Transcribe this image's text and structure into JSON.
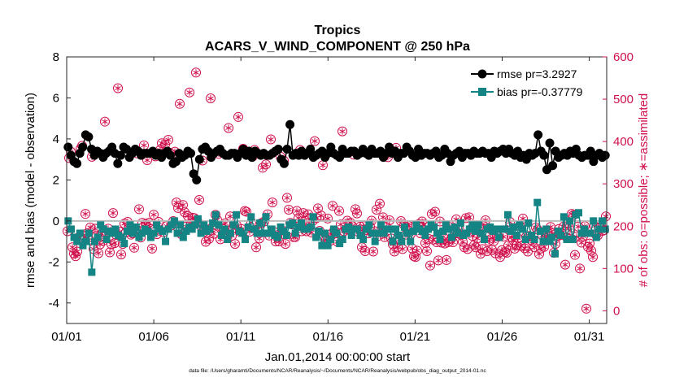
{
  "chart_data": {
    "type": "line",
    "title": "Tropics",
    "subtitle": "ACARS_V_WIND_COMPONENT @ 250 hPa",
    "xlabel": "Jan.01,2014 00:00:00 start",
    "ylabel": "rmse and bias (model - observation)",
    "ylabel_right": "# of obs: o=possible; ∗=assimilated",
    "footnote": "data file: /Users/gharamti/Documents/NCAR/Reanalysis/~/Documents/NCAR/Reanalysis/webpub/obs_diag_output_2014-01.nc",
    "xlim": [
      1,
      32
    ],
    "ylim": [
      -5,
      8
    ],
    "ylim_right": [
      -30,
      600
    ],
    "x_ticks": [
      1,
      6,
      11,
      16,
      21,
      26,
      31
    ],
    "x_tick_labels": [
      "01/01",
      "01/06",
      "01/11",
      "01/16",
      "01/21",
      "01/26",
      "01/31"
    ],
    "y_ticks": [
      -4,
      -2,
      0,
      2,
      4,
      6,
      8
    ],
    "y_ticks_right": [
      0,
      100,
      200,
      300,
      400,
      500,
      600
    ],
    "zero_line": 0,
    "legend_position": "top-right",
    "colors": {
      "rmse": "#000000",
      "bias": "#148484",
      "obs": "#d0104c",
      "zero": "#bbbbbb"
    },
    "series": [
      {
        "name": "rmse",
        "legend": "rmse pr=3.2927",
        "values": [
          3.6,
          3.2,
          2.9,
          2.8,
          3.3,
          3.6,
          4.2,
          4.1,
          3.5,
          3.2,
          3.4,
          3.3,
          3.1,
          3.3,
          3.4,
          3.6,
          3.3,
          2.8,
          3.2,
          3.6,
          3.5,
          3.1,
          3.3,
          3.5,
          3.4,
          3.2,
          3.3,
          3.3,
          3.3,
          3.4,
          3.2,
          3.3,
          3.1,
          3.3,
          3.4,
          3.2,
          2.8,
          2.9,
          3.3,
          3.1,
          3.2,
          3.4,
          3.3,
          2.3,
          2.0,
          3.0,
          3.5,
          3.6,
          3.4,
          3.1,
          3.3,
          3.4,
          3.5,
          3.3,
          3.2,
          3.2,
          3.3,
          3.3,
          3.1,
          3.3,
          3.5,
          3.2,
          3.4,
          3.1,
          3.4,
          3.3,
          3.2,
          3.3,
          3.2,
          3.2,
          3.3,
          3.4,
          3.5,
          3.0,
          2.8,
          3.5,
          4.7,
          3.2,
          3.3,
          3.2,
          3.4,
          3.2,
          3.3,
          3.5,
          3.1,
          3.2,
          3.3,
          3.4,
          3.1,
          3.3,
          3.6,
          3.3,
          3.2,
          3.1,
          3.5,
          3.3,
          3.3,
          3.4,
          3.4,
          3.2,
          3.3,
          3.5,
          3.3,
          3.2,
          3.5,
          3.3,
          3.3,
          3.4,
          3.1,
          3.3,
          3.6,
          3.3,
          3.4,
          3.1,
          3.3,
          3.3,
          3.6,
          3.4,
          3.2,
          3.1,
          3.5,
          3.2,
          3.3,
          3.3,
          3.2,
          3.3,
          3.4,
          3.1,
          3.2,
          3.5,
          3.3,
          2.9,
          3.2,
          3.3,
          3.4,
          3.1,
          3.3,
          3.3,
          3.2,
          3.4,
          3.3,
          3.3,
          3.4,
          3.3,
          3.3,
          3.1,
          3.4,
          3.3,
          3.4,
          3.5,
          3.3,
          3.5,
          3.3,
          3.2,
          3.4,
          3.1,
          3.2,
          3.0,
          3.3,
          3.2,
          3.3,
          4.2,
          3.4,
          3.2,
          2.5,
          3.8,
          2.7,
          3.4,
          3.1,
          3.2,
          3.3,
          3.2,
          3.4,
          3.3,
          3.5,
          3.2,
          3.1,
          3.2,
          3.2,
          3.4,
          2.9,
          3.2,
          3.3,
          3.1,
          3.2
        ]
      },
      {
        "name": "bias",
        "legend": "bias pr=-0.37779",
        "values": [
          0.0,
          -0.4,
          -0.8,
          -1.0,
          -0.6,
          -1.2,
          -1.0,
          -0.6,
          -2.5,
          -1.0,
          -0.8,
          -0.2,
          -0.4,
          -0.9,
          -0.5,
          -0.6,
          -0.4,
          -0.7,
          -0.8,
          -1.1,
          -0.5,
          -0.2,
          -0.6,
          -0.3,
          -0.8,
          -0.6,
          -0.4,
          -0.5,
          -0.8,
          -0.6,
          -0.2,
          -0.4,
          -0.5,
          -1.0,
          -0.4,
          -0.2,
          0.0,
          -0.6,
          -0.2,
          -0.8,
          -0.5,
          -0.3,
          -0.4,
          -0.2,
          0.1,
          -0.6,
          -0.2,
          -0.5,
          -0.4,
          -0.1,
          0.3,
          -0.2,
          -0.7,
          -0.4,
          -0.9,
          -0.6,
          -0.2,
          0.3,
          -0.5,
          -0.6,
          -0.9,
          -0.3,
          0.2,
          -0.4,
          -0.6,
          -0.1,
          -0.6,
          0.2,
          -0.6,
          -0.4,
          -0.7,
          -0.8,
          -0.3,
          -0.5,
          -0.7,
          -0.2,
          -0.1,
          -0.6,
          -0.3,
          -0.1,
          -0.4,
          -0.4,
          -0.3,
          0.2,
          -0.8,
          -0.5,
          -1.2,
          -0.6,
          -1.2,
          -0.9,
          -0.4,
          -0.6,
          -1.1,
          -0.9,
          -0.4,
          -0.3,
          -0.7,
          -0.4,
          -0.4,
          -0.7,
          -0.9,
          -0.4,
          -0.2,
          -0.6,
          -1.0,
          -0.6,
          -0.2,
          -0.6,
          -0.4,
          -0.4,
          -1.0,
          -0.4,
          -0.7,
          -1.0,
          -0.3,
          -0.6,
          -1.0,
          -0.5,
          -0.2,
          -0.4,
          -0.5,
          -0.7,
          -0.4,
          -0.2,
          -0.3,
          -0.6,
          -0.9,
          -0.5,
          -0.2,
          -0.4,
          -0.8,
          -0.3,
          -0.6,
          -0.1,
          -0.7,
          -0.6,
          -0.4,
          -0.2,
          -0.5,
          -0.2,
          -0.6,
          -0.9,
          -0.4,
          -0.3,
          -0.5,
          -0.4,
          -0.8,
          -0.4,
          -0.4,
          0.3,
          -0.5,
          -0.3,
          -0.7,
          -0.2,
          -0.4,
          -0.9,
          -0.1,
          -0.7,
          -0.9,
          0.9,
          -0.5,
          -1.0,
          -0.4,
          -1.0,
          -0.8,
          -1.6,
          -0.5,
          -0.7,
          0.2,
          -0.9,
          0.0,
          -0.9,
          0.3,
          0.4,
          -0.6,
          -0.4,
          -0.6,
          -0.6,
          0.0,
          -0.8,
          -0.4,
          0.0,
          -0.4
        ]
      },
      {
        "name": "obs_possible",
        "axis": "right",
        "values": [
          188,
          361,
          376,
          150,
          135,
          129,
          140,
          174,
          383,
          390,
          178,
          229,
          183,
          167,
          197,
          364,
          146,
          194,
          178,
          136,
          157,
          182,
          166,
          447,
          182,
          194,
          138,
          157,
          231,
          160,
          179,
          526,
          187,
          133,
          158,
          206,
          186,
          210,
          196,
          180,
          183,
          149,
          193,
          372,
          240,
          173,
          208,
          391,
          205,
          356,
          208,
          193,
          147,
          227,
          365,
          181,
          210,
          380,
          396,
          186,
          393,
          200,
          404,
          373,
          202,
          212,
          376,
          256,
          243,
          489,
          181,
          250,
          233,
          199,
          224,
          516,
          207,
          220,
          219,
          563,
          210,
          262,
          201,
          355,
          196,
          163,
          185,
          170,
          502,
          197,
          182,
          227,
          215,
          371,
          169,
          196,
          193,
          207,
          178,
          432,
          223,
          177,
          195,
          158,
          202,
          458,
          187,
          193,
          383,
          236,
          234,
          370,
          187,
          209,
          365,
          380,
          150,
          192,
          171,
          207,
          338,
          211,
          346,
          228,
          178,
          405,
          256,
          186,
          164,
          176,
          164,
          364,
          190,
          355,
          158,
          267,
          239,
          208,
          204,
          174,
          174,
          236,
          219,
          380,
          188,
          231,
          213,
          188,
          228,
          201,
          185,
          213,
          401,
          219,
          242,
          189,
          225,
          344,
          177,
          167,
          218,
          164,
          181,
          248,
          190,
          183,
          163,
          236,
          204,
          424,
          188,
          192,
          213,
          192,
          208,
          200,
          369,
          240,
          230,
          186,
          199,
          150,
          200,
          141,
          190,
          183,
          199,
          213,
          140,
          188,
          239,
          177,
          253,
          192,
          221,
          174,
          198,
          363,
          214,
          171,
          157,
          140,
          385,
          150,
          168,
          212,
          146,
          203,
          180,
          202,
          201,
          181,
          147,
          129,
          127,
          142,
          205,
          183,
          211,
          204,
          160,
          141,
          170,
          107,
          229,
          168,
          234,
          162,
          119,
          211,
          161,
          175,
          159,
          120,
          162,
          198,
          171,
          162,
          192,
          216,
          183,
          191,
          179,
          163,
          150,
          219,
          146,
          221,
          193,
          177,
          155,
          150,
          171,
          199,
          135,
          146,
          200,
          214,
          141,
          165,
          181,
          144,
          164,
          136,
          176,
          175,
          127,
          143,
          175,
          139,
          137,
          154,
          210,
          174,
          167,
          147,
          154,
          171,
          201,
          153,
          218,
          148,
          175,
          140,
          177,
          167,
          164,
          150,
          197,
          192,
          134,
          147,
          178,
          151,
          172,
          187,
          176,
          198,
          183,
          137,
          158,
          175,
          193,
          179,
          183,
          199,
          109,
          173,
          207,
          190,
          229,
          226,
          132,
          175,
          199,
          100,
          161,
          176,
          200,
          5,
          151,
          159,
          142,
          127,
          200,
          179,
          178,
          196,
          199,
          189,
          191,
          223
        ]
      }
    ]
  }
}
